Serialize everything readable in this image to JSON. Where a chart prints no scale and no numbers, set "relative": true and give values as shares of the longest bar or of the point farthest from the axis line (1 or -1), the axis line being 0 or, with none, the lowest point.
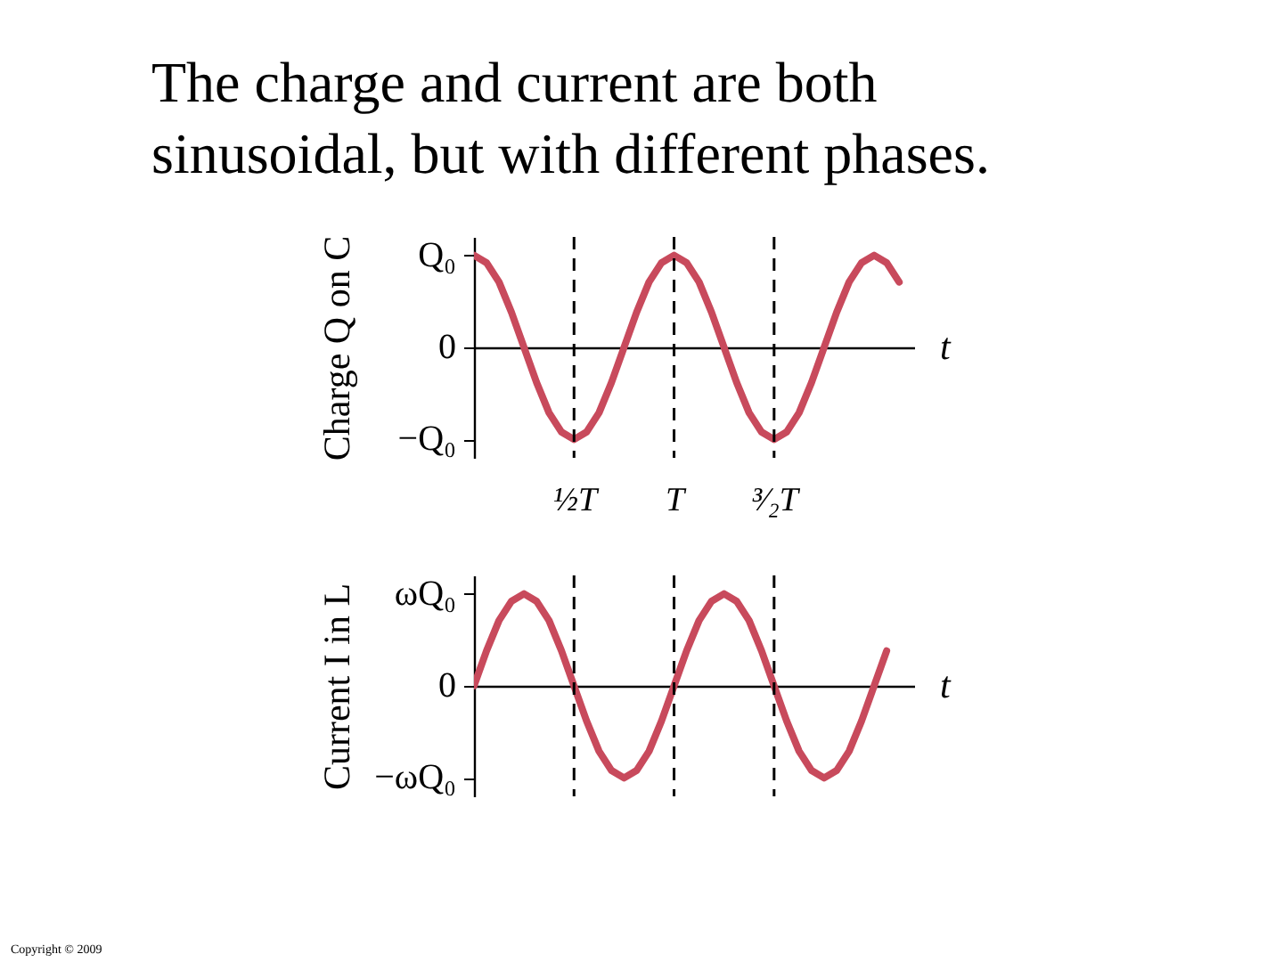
{
  "chart_data": [
    {
      "type": "line",
      "title": "The charge and current are both sinusoidal, but with different phases.",
      "xlabel": "t",
      "ylabel": "Charge Q on C",
      "relative": true,
      "annotations": [
        "Q₀",
        "0",
        "−Q₀"
      ],
      "categories": [
        null,
        null,
        null,
        null,
        null,
        null,
        null,
        null,
        "½T",
        null,
        null,
        null,
        null,
        null,
        null,
        null,
        "T",
        null,
        null,
        null,
        null,
        null,
        null,
        null,
        "³⁄₂T",
        null,
        null,
        null,
        null,
        null,
        null,
        null,
        null,
        null,
        null
      ],
      "series": [
        {
          "color": "#c84a5c",
          "values": [
            1,
            0.92,
            0.71,
            0.38,
            0,
            -0.38,
            -0.71,
            -0.92,
            -1,
            -0.92,
            -0.71,
            -0.38,
            0,
            0.38,
            0.71,
            0.92,
            1,
            0.92,
            0.71,
            0.38,
            0,
            -0.38,
            -0.71,
            -0.92,
            -1,
            -0.92,
            -0.71,
            -0.38,
            0,
            0.38,
            0.71,
            0.92,
            1,
            0.92,
            0.71
          ]
        }
      ],
      "ref_lines": [
        {
          "axis": "x",
          "value": "½T",
          "line_style": "dashed"
        },
        {
          "axis": "x",
          "value": "T",
          "line_style": "dashed"
        },
        {
          "axis": "x",
          "value": "³⁄₂T",
          "line_style": "dashed"
        }
      ],
      "grid": false
    },
    {
      "type": "line",
      "xlabel": "t",
      "ylabel": "Current I in L",
      "relative": true,
      "tick_labels": false,
      "annotations": [
        "ωQ₀",
        "0",
        "−ωQ₀",
        "Copyright © 2009"
      ],
      "categories": [
        null,
        null,
        null,
        null,
        null,
        null,
        null,
        null,
        "½T",
        null,
        null,
        null,
        null,
        null,
        null,
        null,
        "T",
        null,
        null,
        null,
        null,
        null,
        null,
        null,
        "³⁄₂T",
        null,
        null,
        null,
        null,
        null,
        null,
        null,
        null,
        null
      ],
      "series": [
        {
          "color": "#c84a5c",
          "values": [
            0,
            0.38,
            0.71,
            0.92,
            1,
            0.92,
            0.71,
            0.38,
            0,
            -0.38,
            -0.71,
            -0.92,
            -1,
            -0.92,
            -0.71,
            -0.38,
            0,
            0.38,
            0.71,
            0.92,
            1,
            0.92,
            0.71,
            0.38,
            0,
            -0.38,
            -0.71,
            -0.92,
            -1,
            -0.92,
            -0.71,
            -0.38,
            0,
            0.38
          ]
        }
      ],
      "ref_lines": [
        {
          "axis": "x",
          "value": "½T",
          "line_style": "dashed"
        },
        {
          "axis": "x",
          "value": "T",
          "line_style": "dashed"
        },
        {
          "axis": "x",
          "value": "³⁄₂T",
          "line_style": "dashed"
        }
      ],
      "grid": false
    }
  ]
}
